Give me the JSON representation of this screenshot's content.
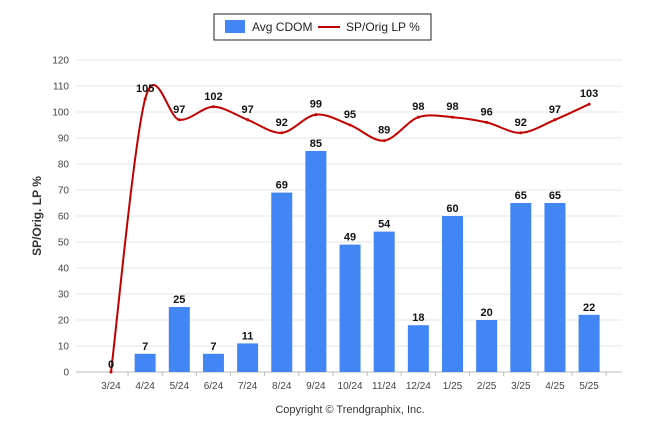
{
  "chart_data": {
    "type": "bar",
    "categories": [
      "3/24",
      "4/24",
      "5/24",
      "6/24",
      "7/24",
      "8/24",
      "9/24",
      "10/24",
      "11/24",
      "12/24",
      "1/25",
      "2/25",
      "3/25",
      "4/25",
      "5/25"
    ],
    "series": [
      {
        "name": "Avg CDOM",
        "type": "bar",
        "color": "#4285f4",
        "values": [
          0,
          7,
          25,
          7,
          11,
          69,
          85,
          49,
          54,
          18,
          60,
          20,
          65,
          65,
          22
        ],
        "labels": [
          "0",
          "7",
          "25",
          "7",
          "11",
          "69",
          "85",
          "49",
          "54",
          "18",
          "60",
          "20",
          "65",
          "65",
          "22"
        ]
      },
      {
        "name": "SP/Orig LP %",
        "type": "line",
        "color": "#c00000",
        "values": [
          0,
          105,
          97,
          102,
          97,
          92,
          99,
          95,
          89,
          98,
          98,
          96,
          92,
          97,
          103
        ],
        "labels": [
          "",
          "105",
          "97",
          "102",
          "97",
          "92",
          "99",
          "95",
          "89",
          "98",
          "98",
          "96",
          "92",
          "97",
          "103"
        ]
      }
    ],
    "ylabel": "SP/Orig. LP %",
    "xlabel": "",
    "ylim": [
      0,
      120
    ],
    "yticks": [
      "0",
      "10",
      "20",
      "30",
      "40",
      "50",
      "60",
      "70",
      "80",
      "90",
      "100",
      "110",
      "120"
    ],
    "grid": true,
    "legend_position": "top-center"
  },
  "footer": {
    "copyright": "Copyright © Trendgraphix, Inc."
  },
  "colors": {
    "bar": "#4285f4",
    "line": "#c00000",
    "grid": "#e6e6e6"
  }
}
